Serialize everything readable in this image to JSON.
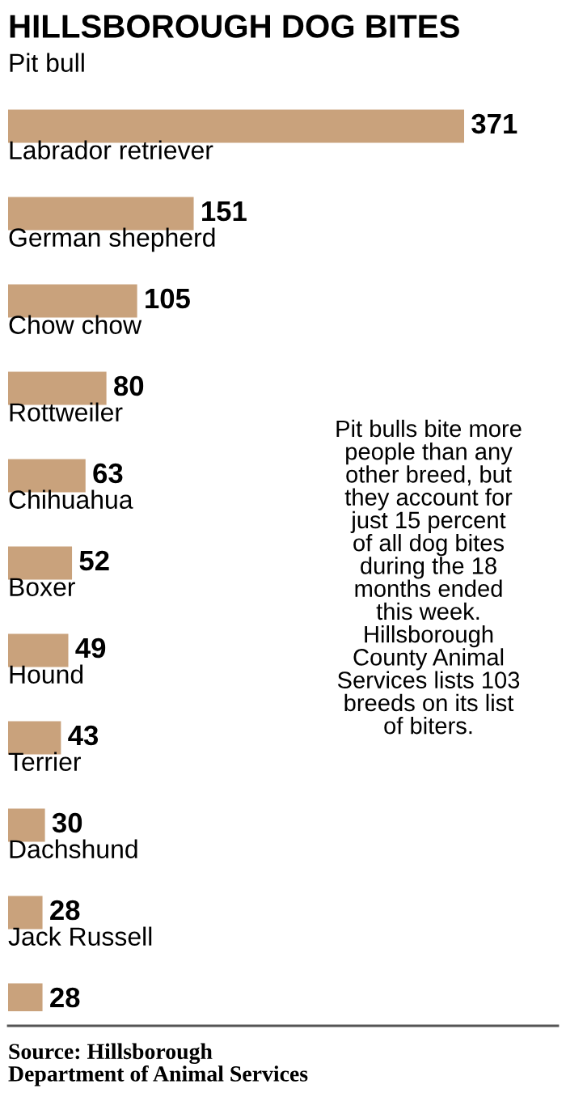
{
  "chart_data": {
    "type": "bar",
    "orientation": "horizontal",
    "title": "HILLSBOROUGH DOG BITES",
    "categories": [
      "Pit bull",
      "Labrador retriever",
      "German shepherd",
      "Chow chow",
      "Rottweiler",
      "Chihuahua",
      "Boxer",
      "Hound",
      "Terrier",
      "Dachshund",
      "Jack Russell"
    ],
    "values": [
      371,
      151,
      105,
      80,
      63,
      52,
      49,
      43,
      30,
      28,
      28
    ],
    "color": "#c9a27c",
    "data_labels": true,
    "annotations": [
      "Pit bulls bite more\npeople than any\nother breed, but\nthey account for\njust 15 percent\nof all dog bites\nduring the 18\nmonths ended\nthis week.\nHillsborough\nCounty Animal\nServices lists 103\nbreeds on its list\nof biters.",
      "Source: Hillsborough\nDepartment of Animal Services"
    ]
  }
}
